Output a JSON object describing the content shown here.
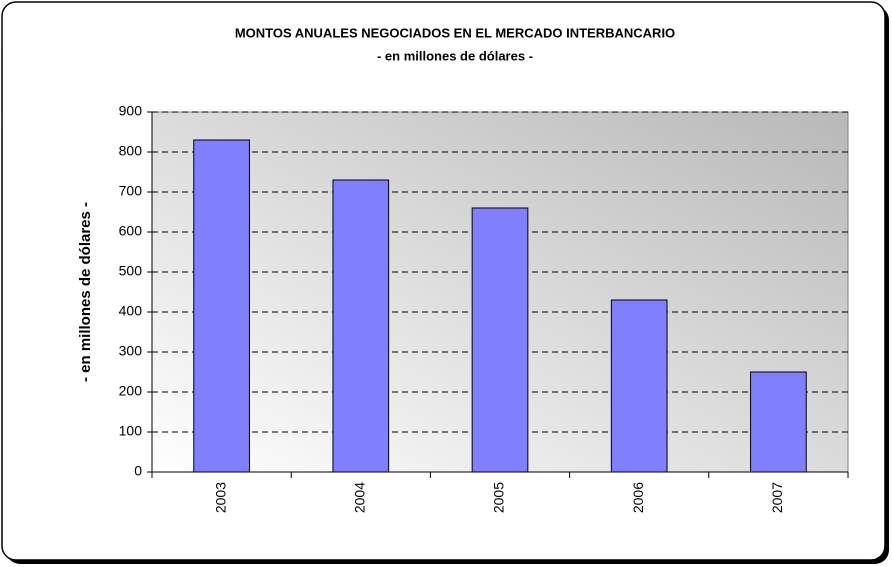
{
  "chart_data": {
    "type": "bar",
    "title": "MONTOS ANUALES NEGOCIADOS EN EL MERCADO INTERBANCARIO",
    "subtitle": "- en millones de dólares -",
    "y_label": "- en millones de dólares -",
    "categories": [
      "2003",
      "2004",
      "2005",
      "2006",
      "2007"
    ],
    "values": [
      830,
      730,
      660,
      430,
      250
    ],
    "color": "#8080ff",
    "ylim": [
      0,
      900
    ],
    "yticks": [
      0,
      100,
      200,
      300,
      400,
      500,
      600,
      700,
      800,
      900
    ],
    "grid": true
  }
}
